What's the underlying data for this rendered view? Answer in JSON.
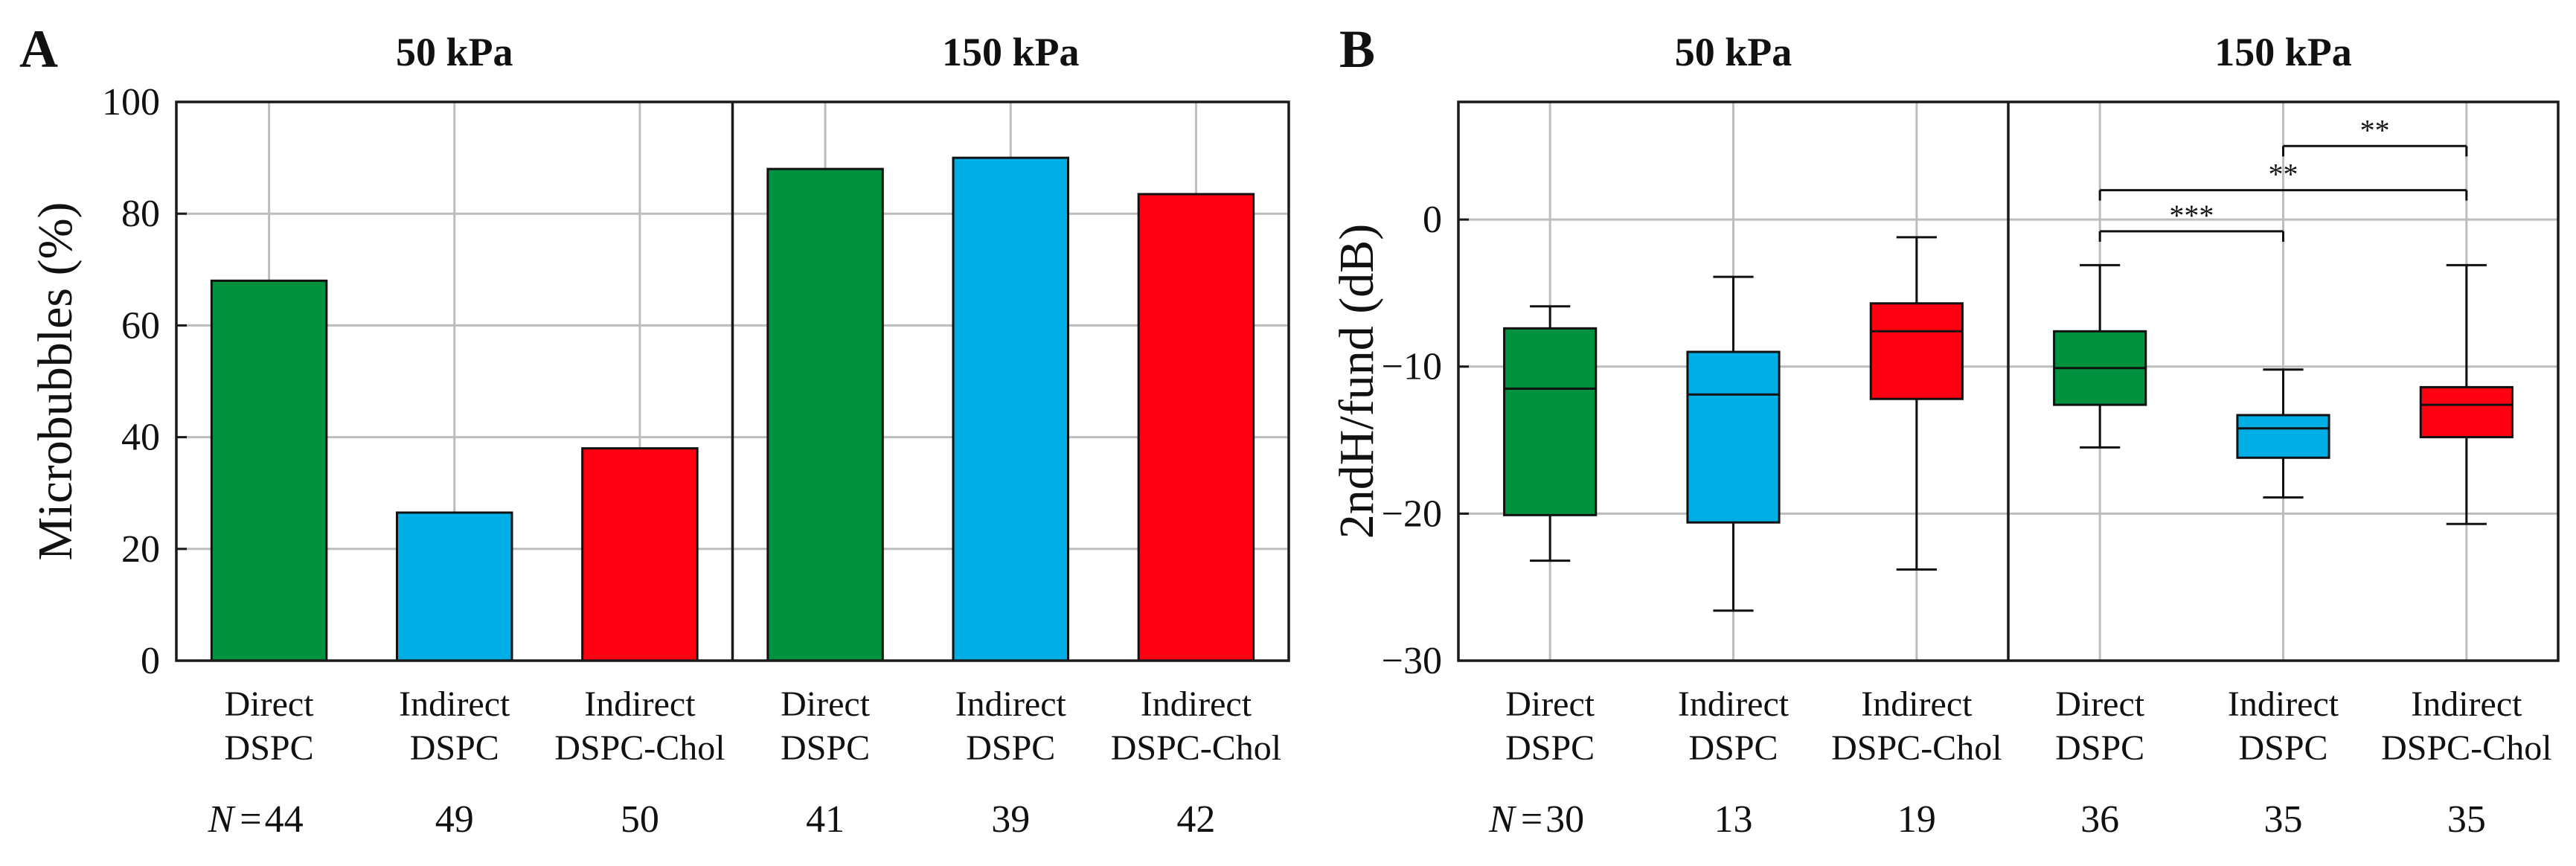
{
  "chart_data": [
    {
      "type": "bar",
      "panel_label": "A",
      "ylabel": "Microbubbles (%)",
      "ylim": [
        0,
        100
      ],
      "yticks": [
        "0",
        "20",
        "40",
        "60",
        "80",
        "100"
      ],
      "groups": [
        {
          "title": "50 kPa",
          "categories": [
            [
              "Direct",
              "DSPC"
            ],
            [
              "Indirect",
              "DSPC"
            ],
            [
              "Indirect",
              "DSPC-Chol"
            ]
          ],
          "values": [
            68,
            26.5,
            38
          ],
          "n": [
            "44",
            "49",
            "50"
          ]
        },
        {
          "title": "150 kPa",
          "categories": [
            [
              "Direct",
              "DSPC"
            ],
            [
              "Indirect",
              "DSPC"
            ],
            [
              "Indirect",
              "DSPC-Chol"
            ]
          ],
          "values": [
            88,
            90,
            83.5
          ],
          "n": [
            "41",
            "39",
            "42"
          ]
        }
      ],
      "series_colors": [
        "#00923f",
        "#00aee6",
        "#ff0012"
      ],
      "n_label": "N",
      "n_eq": "= "
    },
    {
      "type": "box",
      "panel_label": "B",
      "ylabel": "2ndH/fund (dB)",
      "ylim": [
        -30,
        8
      ],
      "yticks": [
        "0",
        "-10",
        "-20",
        "-30"
      ],
      "groups": [
        {
          "title": "50 kPa",
          "categories": [
            [
              "Direct",
              "DSPC"
            ],
            [
              "Indirect",
              "DSPC"
            ],
            [
              "Indirect",
              "DSPC-Chol"
            ]
          ],
          "boxes": [
            {
              "min": -23.2,
              "q1": -20.1,
              "median": -11.5,
              "q3": -7.4,
              "max": -5.9
            },
            {
              "min": -26.6,
              "q1": -20.6,
              "median": -11.9,
              "q3": -9.0,
              "max": -3.9
            },
            {
              "min": -23.8,
              "q1": -12.2,
              "median": -7.6,
              "q3": -5.7,
              "max": -1.2
            }
          ],
          "n": [
            "30",
            "13",
            "19"
          ]
        },
        {
          "title": "150 kPa",
          "categories": [
            [
              "Direct",
              "DSPC"
            ],
            [
              "Indirect",
              "DSPC"
            ],
            [
              "Indirect",
              "DSPC-Chol"
            ]
          ],
          "boxes": [
            {
              "min": -15.5,
              "q1": -12.6,
              "median": -10.1,
              "q3": -7.6,
              "max": -3.1
            },
            {
              "min": -18.9,
              "q1": -16.2,
              "median": -14.2,
              "q3": -13.3,
              "max": -10.2
            },
            {
              "min": -20.7,
              "q1": -14.8,
              "median": -12.6,
              "q3": -11.4,
              "max": -3.1
            }
          ],
          "n": [
            "36",
            "35",
            "35"
          ]
        }
      ],
      "significance": [
        {
          "from": 1,
          "to": 2,
          "label": "**",
          "y": 5
        },
        {
          "from": 0,
          "to": 2,
          "label": "**",
          "y": 2
        },
        {
          "from": 0,
          "to": 1,
          "label": "***",
          "y": -0.8
        }
      ],
      "series_colors": [
        "#00923f",
        "#00aee6",
        "#ff0012"
      ],
      "n_label": "N",
      "n_eq": "= "
    }
  ]
}
